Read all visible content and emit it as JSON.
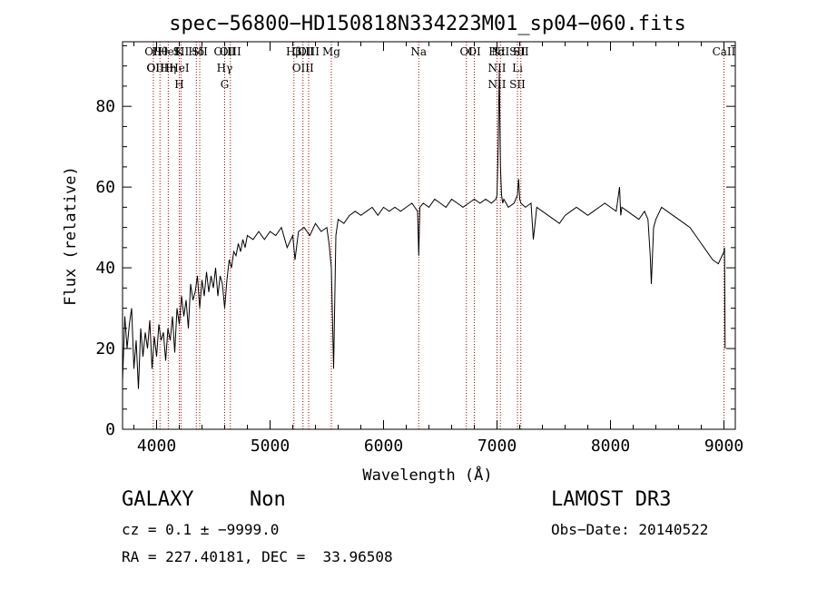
{
  "chart_data": {
    "type": "line",
    "title": "spec−56800−HD150818N334223M01_sp04−060.fits",
    "xlabel": "Wavelength (Å)",
    "ylabel": "Flux (relative)",
    "xlim": [
      3700,
      9100
    ],
    "ylim": [
      0,
      96
    ],
    "x_ticks": [
      4000,
      5000,
      6000,
      7000,
      8000,
      9000
    ],
    "x_tick_labels": [
      "4000",
      "5000",
      "6000",
      "7000",
      "8000",
      "9000"
    ],
    "y_ticks": [
      0,
      20,
      40,
      60,
      80
    ],
    "y_tick_labels": [
      "0",
      "20",
      "40",
      "60",
      "80"
    ],
    "grid": false,
    "series": [
      {
        "name": "flux",
        "x": [
          3700,
          3720,
          3740,
          3760,
          3780,
          3800,
          3820,
          3840,
          3860,
          3880,
          3900,
          3920,
          3940,
          3960,
          3980,
          4000,
          4020,
          4040,
          4060,
          4080,
          4100,
          4120,
          4140,
          4160,
          4180,
          4200,
          4220,
          4240,
          4260,
          4280,
          4300,
          4320,
          4340,
          4360,
          4380,
          4400,
          4420,
          4440,
          4460,
          4480,
          4500,
          4520,
          4540,
          4560,
          4580,
          4600,
          4620,
          4640,
          4660,
          4680,
          4700,
          4720,
          4740,
          4760,
          4780,
          4800,
          4850,
          4900,
          4950,
          5000,
          5050,
          5100,
          5150,
          5200,
          5220,
          5250,
          5300,
          5350,
          5400,
          5450,
          5500,
          5520,
          5540,
          5560,
          5580,
          5600,
          5650,
          5700,
          5750,
          5800,
          5850,
          5900,
          5950,
          6000,
          6050,
          6100,
          6150,
          6200,
          6250,
          6300,
          6310,
          6320,
          6350,
          6400,
          6450,
          6500,
          6550,
          6600,
          6650,
          6700,
          6750,
          6800,
          6850,
          6900,
          6950,
          6990,
          7000,
          7010,
          7020,
          7030,
          7040,
          7050,
          7060,
          7080,
          7100,
          7150,
          7180,
          7190,
          7200,
          7210,
          7250,
          7300,
          7320,
          7350,
          7400,
          7450,
          7500,
          7550,
          7600,
          7650,
          7700,
          7750,
          7800,
          7850,
          7900,
          7950,
          8000,
          8050,
          8080,
          8090,
          8100,
          8150,
          8200,
          8250,
          8300,
          8330,
          8350,
          8360,
          8380,
          8400,
          8450,
          8500,
          8550,
          8600,
          8650,
          8700,
          8750,
          8800,
          8850,
          8900,
          8950,
          9000,
          9005,
          9010
        ],
        "values": [
          12,
          28,
          20,
          26,
          30,
          15,
          22,
          10,
          25,
          18,
          24,
          20,
          27,
          15,
          23,
          18,
          26,
          22,
          24,
          17,
          25,
          22,
          28,
          19,
          30,
          26,
          33,
          28,
          32,
          25,
          36,
          32,
          34,
          38,
          30,
          37,
          33,
          39,
          34,
          38,
          35,
          40,
          33,
          38,
          36,
          30,
          37,
          42,
          40,
          44,
          43,
          46,
          44,
          47,
          45,
          48,
          47,
          49,
          47,
          49,
          48,
          50,
          45,
          48,
          42,
          49,
          50,
          48,
          51,
          49,
          50,
          46,
          40,
          15,
          48,
          52,
          51,
          53,
          54,
          53,
          54,
          55,
          53,
          55,
          54,
          55,
          54,
          55,
          56,
          54,
          43,
          55,
          56,
          55,
          57,
          56,
          55,
          57,
          56,
          55,
          56,
          57,
          56,
          57,
          56,
          57,
          58,
          70,
          89,
          65,
          58,
          56,
          57,
          56,
          55,
          56,
          58,
          62,
          57,
          56,
          55,
          56,
          47,
          55,
          54,
          53,
          52,
          51,
          53,
          54,
          55,
          54,
          53,
          54,
          55,
          56,
          55,
          54,
          60,
          53,
          55,
          54,
          53,
          52,
          54,
          52,
          43,
          36,
          50,
          52,
          55,
          54,
          53,
          52,
          51,
          50,
          48,
          46,
          44,
          42,
          41,
          44,
          45,
          20
        ]
      }
    ],
    "lines": [
      {
        "x": 3971,
        "labels": [
          "OII",
          "OI"
        ]
      },
      {
        "x": 4030,
        "labels": [
          "Hθ",
          "OIIH"
        ]
      },
      {
        "x": 4103,
        "labels": [
          "HeI",
          "Hη"
        ]
      },
      {
        "x": 4200,
        "labels": [
          "K",
          "HeI",
          "H"
        ]
      },
      {
        "x": 4215,
        "labels": [
          "SII"
        ]
      },
      {
        "x": 4350,
        "labels": [
          "Hδ"
        ]
      },
      {
        "x": 4380,
        "labels": [
          "SII"
        ]
      },
      {
        "x": 4600,
        "labels": [
          "OIII",
          "Hγ",
          "G"
        ]
      },
      {
        "x": 4650,
        "labels": [
          "OIII"
        ]
      },
      {
        "x": 5210,
        "labels": [
          "Hβ"
        ]
      },
      {
        "x": 5290,
        "labels": [
          "OIII",
          "OIII"
        ]
      },
      {
        "x": 5340,
        "labels": [
          "OIII"
        ]
      },
      {
        "x": 5540,
        "labels": [
          "Mg"
        ]
      },
      {
        "x": 6310,
        "labels": [
          "Na"
        ]
      },
      {
        "x": 6730,
        "labels": [
          "OI"
        ]
      },
      {
        "x": 6800,
        "labels": [
          "OI"
        ]
      },
      {
        "x": 7000,
        "labels": [
          "Hα",
          "NII",
          "NII"
        ]
      },
      {
        "x": 7030,
        "labels": [
          "NII"
        ]
      },
      {
        "x": 7180,
        "labels": [
          "SII",
          "Li",
          "SII"
        ]
      },
      {
        "x": 7210,
        "labels": [
          "SII"
        ]
      },
      {
        "x": 9000,
        "labels": [
          "CaII"
        ]
      }
    ]
  },
  "info": {
    "object_class": "GALAXY",
    "object_subclass": "Non",
    "cz_line": "cz = 0.1 ± −9999.0",
    "coords_line": "RA = 227.40181, DEC =  33.96508",
    "survey": "LAMOST DR3",
    "obs_date": "Obs−Date: 20140522"
  }
}
